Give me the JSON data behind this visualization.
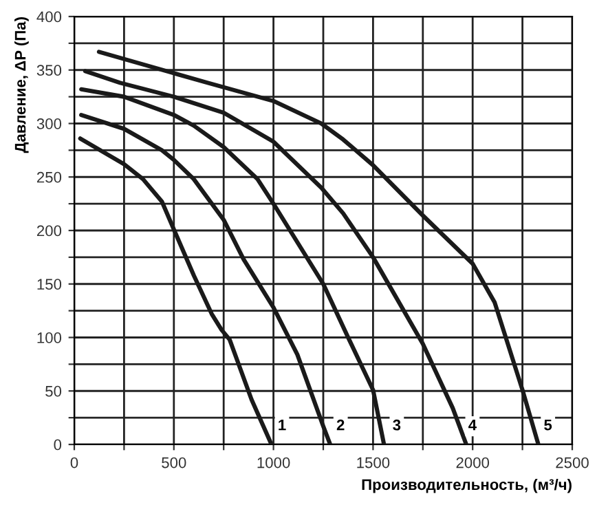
{
  "chart_data": {
    "type": "line",
    "xlabel": "Производительность, (м³/ч)",
    "ylabel": "Давление, ΔP (Па)",
    "xlim": [
      0,
      2500
    ],
    "ylim": [
      0,
      400
    ],
    "xticks": [
      0,
      {
        "value": 250,
        "label": null
      },
      500,
      {
        "value": 750,
        "label": null
      },
      1000,
      {
        "value": 1250,
        "label": null
      },
      1500,
      {
        "value": 1750,
        "label": null
      },
      2000,
      {
        "value": 2250,
        "label": null
      },
      2500
    ],
    "yticks": [
      0,
      {
        "value": 25,
        "label": null
      },
      50,
      {
        "value": 75,
        "label": null
      },
      100,
      {
        "value": 125,
        "label": null
      },
      150,
      {
        "value": 175,
        "label": null
      },
      200,
      {
        "value": 225,
        "label": null
      },
      250,
      {
        "value": 275,
        "label": null
      },
      300,
      {
        "value": 325,
        "label": null
      },
      350,
      {
        "value": 375,
        "label": null
      },
      400
    ],
    "grid": true,
    "legend": false,
    "marker": "none",
    "line_style": "solid",
    "series": [
      {
        "color": "#1a1a1a",
        "x": [
          30,
          250,
          345,
          440,
          500,
          600,
          690,
          740,
          780,
          890,
          990
        ],
        "values": [
          286,
          262,
          248,
          227,
          201,
          158,
          122,
          107,
          98,
          42,
          0
        ]
      },
      {
        "color": "#1a1a1a",
        "x": [
          35,
          250,
          440,
          500,
          600,
          750,
          850,
          1000,
          1120,
          1250,
          1285
        ],
        "values": [
          308,
          295,
          275,
          266,
          248,
          210,
          173,
          128,
          84,
          17,
          0
        ]
      },
      {
        "color": "#1a1a1a",
        "x": [
          35,
          250,
          500,
          600,
          750,
          920,
          1000,
          1250,
          1380,
          1500,
          1555
        ],
        "values": [
          332,
          325,
          308,
          298,
          278,
          248,
          225,
          150,
          98,
          51,
          0
        ]
      },
      {
        "color": "#1a1a1a",
        "x": [
          55,
          230,
          500,
          750,
          1000,
          1240,
          1350,
          1500,
          1750,
          1900,
          1968
        ],
        "values": [
          349,
          338,
          325,
          310,
          283,
          240,
          216,
          175,
          94,
          34,
          0
        ]
      },
      {
        "color": "#1a1a1a",
        "x": [
          124,
          500,
          670,
          1000,
          1240,
          1350,
          1500,
          1750,
          2000,
          2110,
          2250,
          2330
        ],
        "values": [
          367,
          347,
          338,
          321,
          300,
          285,
          261,
          214,
          169,
          133,
          51,
          0
        ]
      }
    ],
    "annotations": [
      {
        "text": "1",
        "x": 1043,
        "y": 17
      },
      {
        "text": "2",
        "x": 1337,
        "y": 17
      },
      {
        "text": "3",
        "x": 1619,
        "y": 17
      },
      {
        "text": "4",
        "x": 1999,
        "y": 17
      },
      {
        "text": "5",
        "x": 2378,
        "y": 17
      }
    ]
  }
}
